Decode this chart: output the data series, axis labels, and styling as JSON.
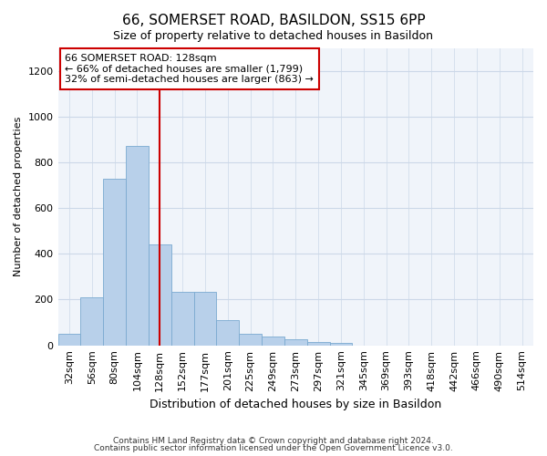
{
  "title": "66, SOMERSET ROAD, BASILDON, SS15 6PP",
  "subtitle": "Size of property relative to detached houses in Basildon",
  "xlabel": "Distribution of detached houses by size in Basildon",
  "ylabel": "Number of detached properties",
  "footer_line1": "Contains HM Land Registry data © Crown copyright and database right 2024.",
  "footer_line2": "Contains public sector information licensed under the Open Government Licence v3.0.",
  "annotation_title": "66 SOMERSET ROAD: 128sqm",
  "annotation_line1": "← 66% of detached houses are smaller (1,799)",
  "annotation_line2": "32% of semi-detached houses are larger (863) →",
  "bar_labels": [
    "32sqm",
    "56sqm",
    "80sqm",
    "104sqm",
    "128sqm",
    "152sqm",
    "177sqm",
    "201sqm",
    "225sqm",
    "249sqm",
    "273sqm",
    "297sqm",
    "321sqm",
    "345sqm",
    "369sqm",
    "393sqm",
    "418sqm",
    "442sqm",
    "466sqm",
    "490sqm",
    "514sqm"
  ],
  "bar_values": [
    50,
    210,
    730,
    870,
    440,
    235,
    235,
    110,
    50,
    40,
    25,
    15,
    10,
    0,
    0,
    0,
    0,
    0,
    0,
    0,
    0
  ],
  "vline_bar_idx": 4,
  "bar_color": "#b8d0ea",
  "bar_edge_color": "#7aaad0",
  "vline_color": "#cc0000",
  "annotation_box_edge_color": "#cc0000",
  "grid_color": "#ccd8e8",
  "bg_color": "#f0f4fa",
  "ylim": [
    0,
    1300
  ],
  "yticks": [
    0,
    200,
    400,
    600,
    800,
    1000,
    1200
  ],
  "title_fontsize": 11,
  "subtitle_fontsize": 9,
  "ylabel_fontsize": 8,
  "xlabel_fontsize": 9,
  "annotation_fontsize": 8,
  "footer_fontsize": 6.5,
  "tick_fontsize": 8
}
